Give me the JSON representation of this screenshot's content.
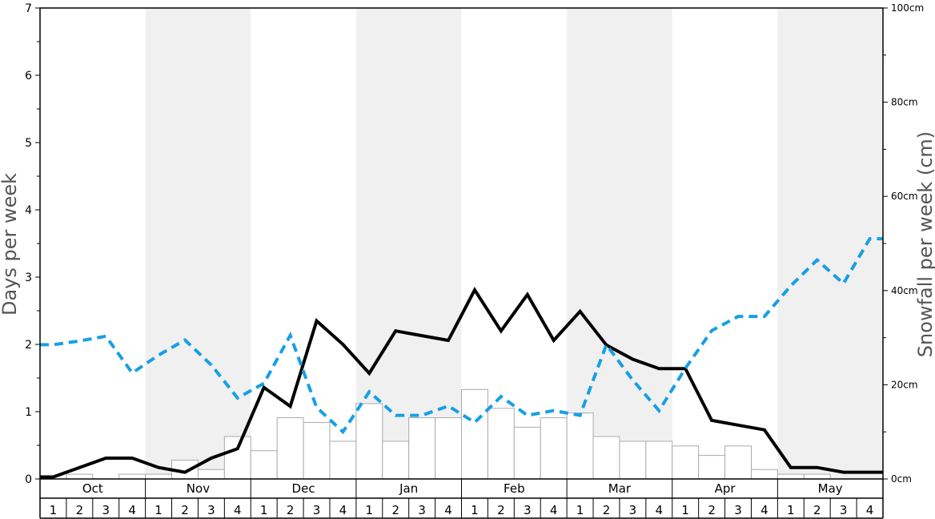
{
  "chart_data": {
    "type": "bar",
    "months": [
      "Oct",
      "Nov",
      "Dec",
      "Jan",
      "Feb",
      "Mar",
      "Apr",
      "May"
    ],
    "weeks": [
      "1",
      "2",
      "3",
      "4"
    ],
    "ylabel": "Days per week",
    "y2label": "Snowfall per week (cm)",
    "ylim": [
      0,
      7
    ],
    "y2lim": [
      0,
      100
    ],
    "yticks": [
      "0",
      "1",
      "2",
      "3",
      "4",
      "5",
      "6",
      "7"
    ],
    "y2ticks": [
      "0cm",
      "20cm",
      "40cm",
      "60cm",
      "80cm",
      "100cm"
    ],
    "grid": false,
    "colors": {
      "shade": "#f0f0f0",
      "bar_fill": "#ffffff",
      "bar_stroke": "#aaaaaa",
      "solid_line": "#000000",
      "dashed_line": "#169fe6"
    },
    "series": [
      {
        "type": "bar",
        "axis": "left",
        "values": [
          0,
          0.07,
          0,
          0.07,
          0.07,
          0.28,
          0.14,
          0.63,
          0.42,
          0.91,
          0.84,
          0.56,
          1.12,
          0.56,
          0.91,
          0.91,
          1.33,
          1.05,
          0.77,
          0.91,
          0.98,
          0.63,
          0.56,
          0.56,
          0.49,
          0.35,
          0.49,
          0.14,
          0.07,
          0.07,
          0,
          0
        ]
      },
      {
        "type": "line",
        "style": "solid",
        "axis": "left",
        "values": [
          0.03,
          0.17,
          0.31,
          0.31,
          0.17,
          0.1,
          0.31,
          0.45,
          1.36,
          1.08,
          2.35,
          2.0,
          1.57,
          2.2,
          2.13,
          2.06,
          2.81,
          2.2,
          2.74,
          2.06,
          2.49,
          1.99,
          1.78,
          1.64,
          1.64,
          0.87,
          0.8,
          0.73,
          0.17,
          0.17,
          0.1,
          0.1
        ]
      },
      {
        "type": "line",
        "style": "dashed",
        "axis": "right",
        "values": [
          28.5,
          29.3,
          30.3,
          22.5,
          26.3,
          29.5,
          24.2,
          17.2,
          20.3,
          30.5,
          15.2,
          10.0,
          18.5,
          13.5,
          13.5,
          15.5,
          12.0,
          17.5,
          13.5,
          14.5,
          13.5,
          28.5,
          21.0,
          14.5,
          23.5,
          31.5,
          34.5,
          34.5,
          41.0,
          46.5,
          41.5,
          51.0
        ]
      }
    ]
  }
}
